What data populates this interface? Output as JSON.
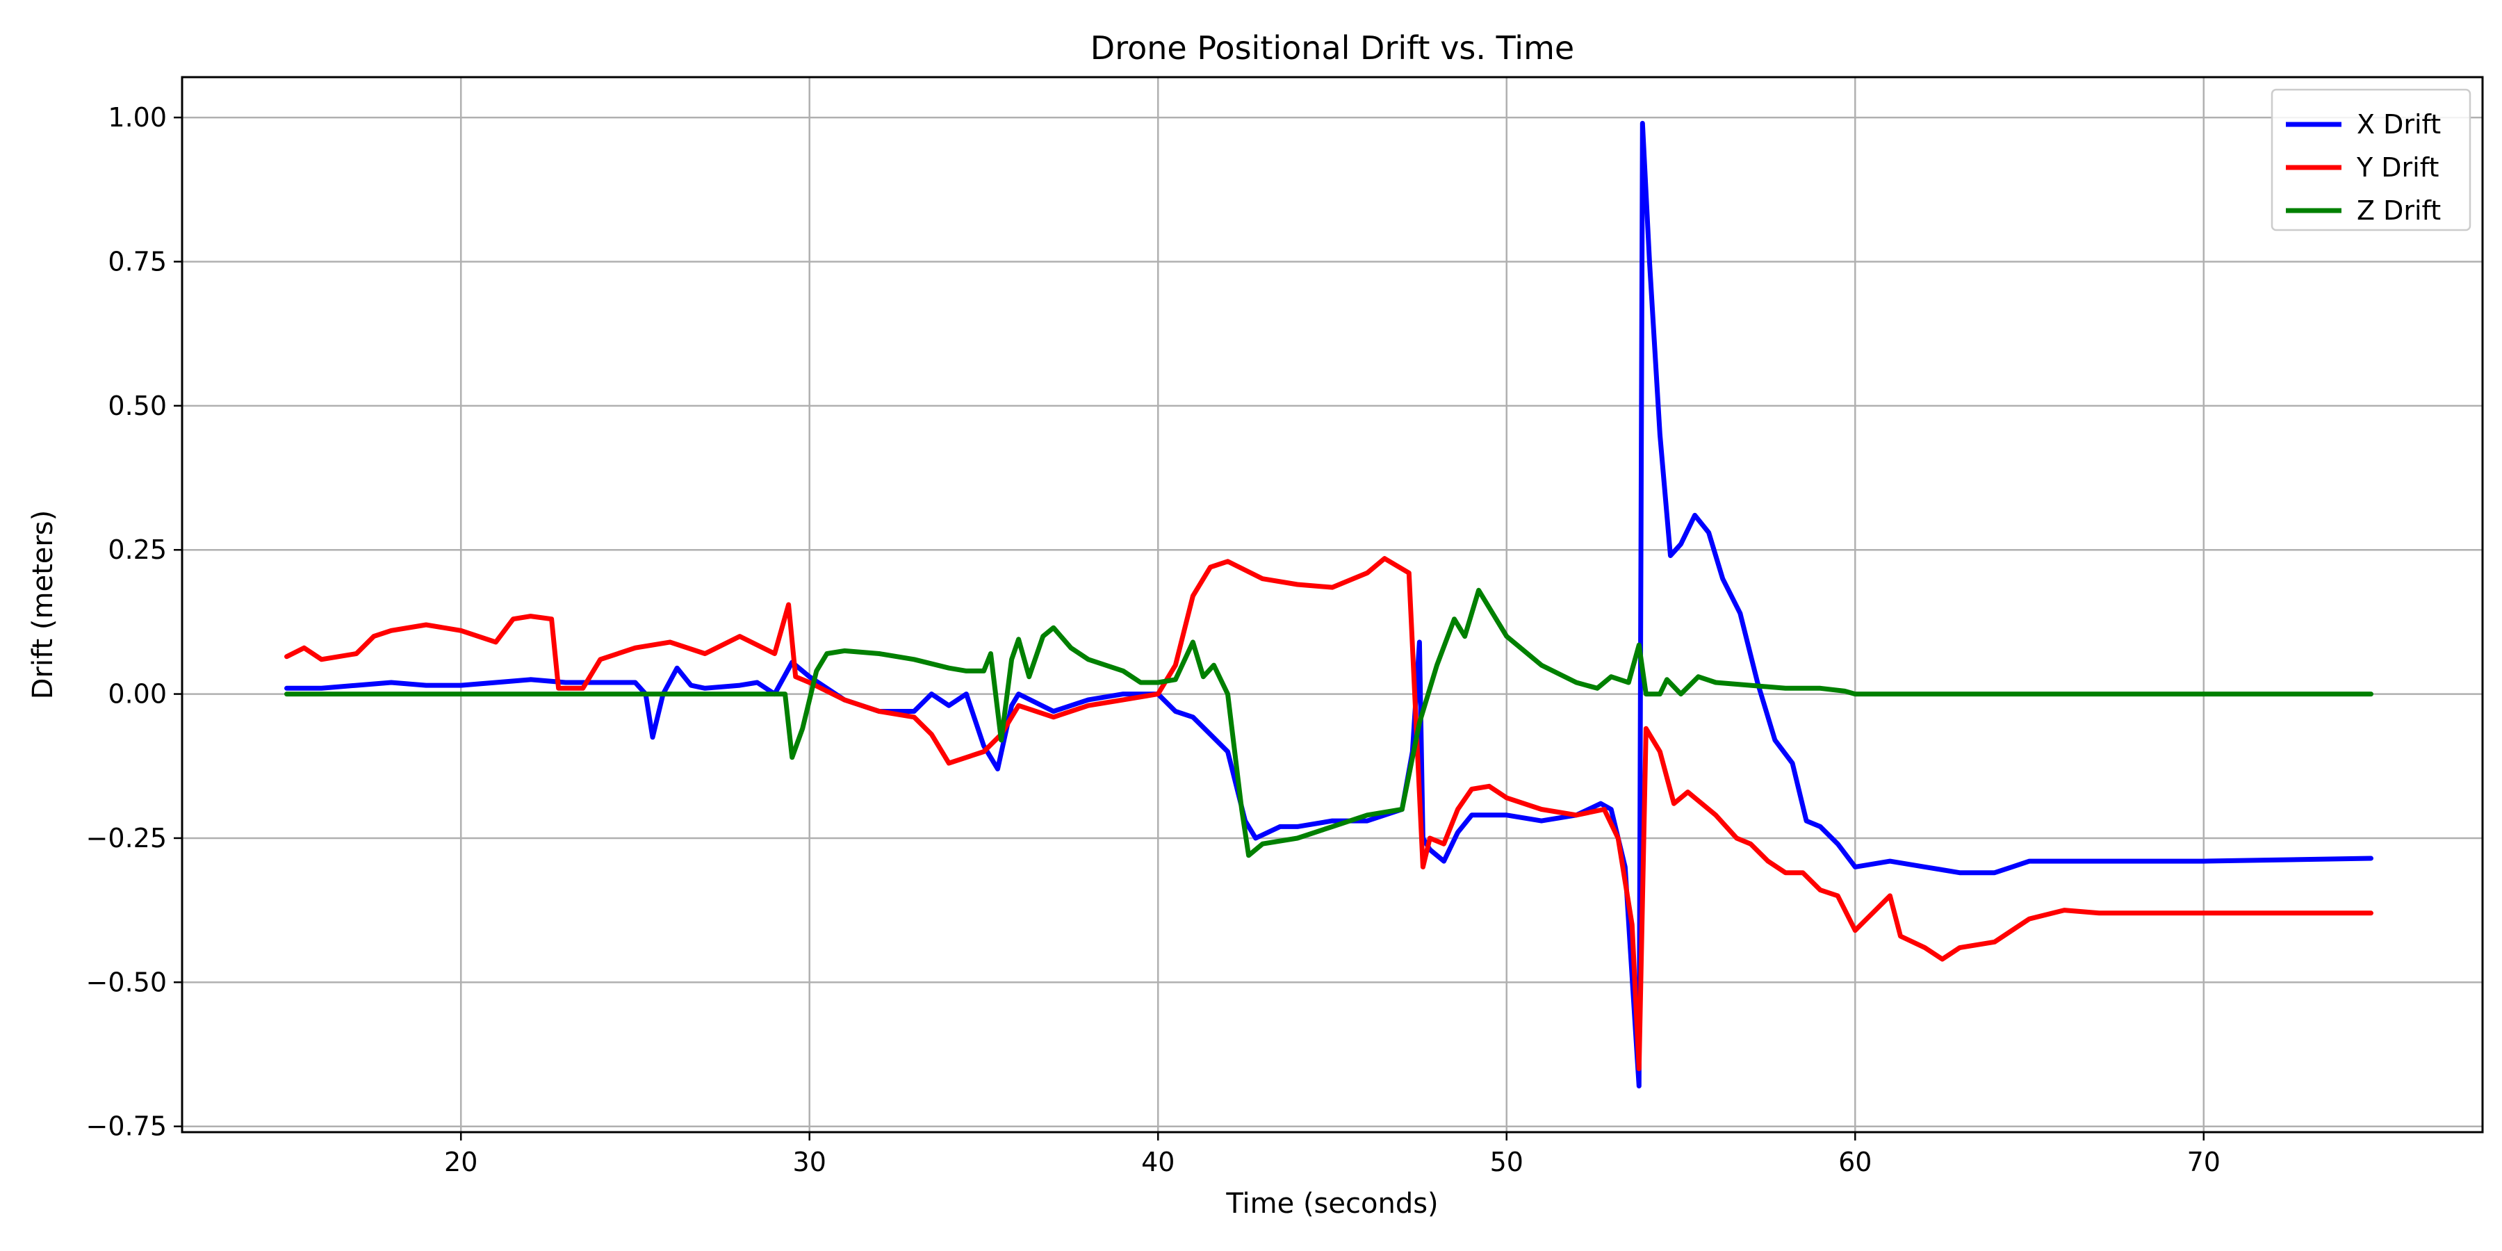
{
  "chart_data": {
    "type": "line",
    "title": "Drone Positional Drift vs. Time",
    "xlabel": "Time (seconds)",
    "ylabel": "Drift (meters)",
    "xlim": [
      12,
      78
    ],
    "ylim": [
      -0.76,
      1.07
    ],
    "xticks": [
      20,
      30,
      40,
      50,
      60,
      70
    ],
    "yticks": [
      1.0,
      0.75,
      0.5,
      0.25,
      0.0,
      -0.25,
      -0.5,
      -0.75
    ],
    "xtick_labels": [
      "20",
      "30",
      "40",
      "50",
      "60",
      "70"
    ],
    "ytick_labels": [
      "1.00",
      "0.75",
      "0.50",
      "0.25",
      "0.00",
      "−0.25",
      "−0.50",
      "−0.75"
    ],
    "grid": true,
    "legend_position": "top-right",
    "series": [
      {
        "name": "X Drift",
        "color": "#0000ff",
        "points": [
          [
            15,
            0.01
          ],
          [
            16,
            0.01
          ],
          [
            17,
            0.015
          ],
          [
            18,
            0.02
          ],
          [
            19,
            0.015
          ],
          [
            20,
            0.015
          ],
          [
            21,
            0.02
          ],
          [
            22,
            0.025
          ],
          [
            23,
            0.02
          ],
          [
            24,
            0.02
          ],
          [
            25,
            0.02
          ],
          [
            25.3,
            0.0
          ],
          [
            25.5,
            -0.075
          ],
          [
            25.8,
            0.0
          ],
          [
            26.2,
            0.045
          ],
          [
            26.6,
            0.015
          ],
          [
            27,
            0.01
          ],
          [
            28,
            0.015
          ],
          [
            28.5,
            0.02
          ],
          [
            29,
            0.0
          ],
          [
            29.5,
            0.055
          ],
          [
            30,
            0.03
          ],
          [
            31,
            -0.01
          ],
          [
            32,
            -0.03
          ],
          [
            33,
            -0.03
          ],
          [
            33.5,
            0.0
          ],
          [
            34,
            -0.02
          ],
          [
            34.5,
            0.0
          ],
          [
            35,
            -0.09
          ],
          [
            35.4,
            -0.13
          ],
          [
            35.8,
            -0.02
          ],
          [
            36,
            0.0
          ],
          [
            37,
            -0.03
          ],
          [
            38,
            -0.01
          ],
          [
            39,
            0.0
          ],
          [
            40,
            0.0
          ],
          [
            40.5,
            -0.03
          ],
          [
            41,
            -0.04
          ],
          [
            41.5,
            -0.07
          ],
          [
            42,
            -0.1
          ],
          [
            42.5,
            -0.22
          ],
          [
            42.8,
            -0.25
          ],
          [
            43.5,
            -0.23
          ],
          [
            44,
            -0.23
          ],
          [
            45,
            -0.22
          ],
          [
            46,
            -0.22
          ],
          [
            47,
            -0.2
          ],
          [
            47.3,
            -0.1
          ],
          [
            47.5,
            0.09
          ],
          [
            47.6,
            -0.25
          ],
          [
            47.8,
            -0.27
          ],
          [
            48.2,
            -0.29
          ],
          [
            48.6,
            -0.24
          ],
          [
            49,
            -0.21
          ],
          [
            50,
            -0.21
          ],
          [
            51,
            -0.22
          ],
          [
            52,
            -0.21
          ],
          [
            52.7,
            -0.19
          ],
          [
            53.0,
            -0.2
          ],
          [
            53.4,
            -0.3
          ],
          [
            53.8,
            -0.68
          ],
          [
            53.9,
            0.99
          ],
          [
            54.1,
            0.75
          ],
          [
            54.4,
            0.45
          ],
          [
            54.7,
            0.24
          ],
          [
            55.0,
            0.26
          ],
          [
            55.4,
            0.31
          ],
          [
            55.8,
            0.28
          ],
          [
            56.2,
            0.2
          ],
          [
            56.7,
            0.14
          ],
          [
            57.2,
            0.02
          ],
          [
            57.7,
            -0.08
          ],
          [
            58.2,
            -0.12
          ],
          [
            58.6,
            -0.22
          ],
          [
            59.0,
            -0.23
          ],
          [
            59.5,
            -0.26
          ],
          [
            60,
            -0.3
          ],
          [
            61,
            -0.29
          ],
          [
            62,
            -0.3
          ],
          [
            63,
            -0.31
          ],
          [
            64,
            -0.31
          ],
          [
            64.5,
            -0.3
          ],
          [
            65,
            -0.29
          ],
          [
            70,
            -0.29
          ],
          [
            74.8,
            -0.285
          ]
        ]
      },
      {
        "name": "Y Drift",
        "color": "#ff0000",
        "points": [
          [
            15,
            0.065
          ],
          [
            15.5,
            0.08
          ],
          [
            16,
            0.06
          ],
          [
            17,
            0.07
          ],
          [
            17.5,
            0.1
          ],
          [
            18,
            0.11
          ],
          [
            19,
            0.12
          ],
          [
            20,
            0.11
          ],
          [
            21,
            0.09
          ],
          [
            21.5,
            0.13
          ],
          [
            22,
            0.135
          ],
          [
            22.6,
            0.13
          ],
          [
            22.8,
            0.01
          ],
          [
            23.5,
            0.01
          ],
          [
            24,
            0.06
          ],
          [
            25,
            0.08
          ],
          [
            26,
            0.09
          ],
          [
            27,
            0.07
          ],
          [
            28,
            0.1
          ],
          [
            29,
            0.07
          ],
          [
            29.4,
            0.155
          ],
          [
            29.6,
            0.03
          ],
          [
            30,
            0.02
          ],
          [
            31,
            -0.01
          ],
          [
            32,
            -0.03
          ],
          [
            33,
            -0.04
          ],
          [
            33.5,
            -0.07
          ],
          [
            34,
            -0.12
          ],
          [
            34.5,
            -0.11
          ],
          [
            35,
            -0.1
          ],
          [
            35.5,
            -0.07
          ],
          [
            36,
            -0.02
          ],
          [
            37,
            -0.04
          ],
          [
            38,
            -0.02
          ],
          [
            39,
            -0.01
          ],
          [
            40,
            0.0
          ],
          [
            40.5,
            0.05
          ],
          [
            41,
            0.17
          ],
          [
            41.5,
            0.22
          ],
          [
            42,
            0.23
          ],
          [
            43,
            0.2
          ],
          [
            44,
            0.19
          ],
          [
            45,
            0.185
          ],
          [
            46,
            0.21
          ],
          [
            46.5,
            0.235
          ],
          [
            47.2,
            0.21
          ],
          [
            47.6,
            -0.3
          ],
          [
            47.8,
            -0.25
          ],
          [
            48.2,
            -0.26
          ],
          [
            48.6,
            -0.2
          ],
          [
            49,
            -0.165
          ],
          [
            49.5,
            -0.16
          ],
          [
            50,
            -0.18
          ],
          [
            51,
            -0.2
          ],
          [
            52,
            -0.21
          ],
          [
            52.8,
            -0.2
          ],
          [
            53.2,
            -0.25
          ],
          [
            53.6,
            -0.4
          ],
          [
            53.8,
            -0.65
          ],
          [
            54.0,
            -0.06
          ],
          [
            54.4,
            -0.1
          ],
          [
            54.8,
            -0.19
          ],
          [
            55.2,
            -0.17
          ],
          [
            55.6,
            -0.19
          ],
          [
            56,
            -0.21
          ],
          [
            56.6,
            -0.25
          ],
          [
            57,
            -0.26
          ],
          [
            57.5,
            -0.29
          ],
          [
            58,
            -0.31
          ],
          [
            58.5,
            -0.31
          ],
          [
            59,
            -0.34
          ],
          [
            59.5,
            -0.35
          ],
          [
            60,
            -0.41
          ],
          [
            60.5,
            -0.38
          ],
          [
            61,
            -0.35
          ],
          [
            61.3,
            -0.42
          ],
          [
            62,
            -0.44
          ],
          [
            62.5,
            -0.46
          ],
          [
            63,
            -0.44
          ],
          [
            64,
            -0.43
          ],
          [
            65,
            -0.39
          ],
          [
            66,
            -0.375
          ],
          [
            67,
            -0.38
          ],
          [
            70,
            -0.38
          ],
          [
            74.8,
            -0.38
          ]
        ]
      },
      {
        "name": "Z Drift",
        "color": "#008000",
        "points": [
          [
            15,
            0.0
          ],
          [
            29.3,
            0.0
          ],
          [
            29.5,
            -0.11
          ],
          [
            29.8,
            -0.06
          ],
          [
            30.2,
            0.04
          ],
          [
            30.5,
            0.07
          ],
          [
            31,
            0.075
          ],
          [
            32,
            0.07
          ],
          [
            33,
            0.06
          ],
          [
            34,
            0.045
          ],
          [
            34.5,
            0.04
          ],
          [
            35,
            0.04
          ],
          [
            35.2,
            0.07
          ],
          [
            35.5,
            -0.08
          ],
          [
            35.8,
            0.06
          ],
          [
            36.0,
            0.095
          ],
          [
            36.3,
            0.03
          ],
          [
            36.7,
            0.1
          ],
          [
            37,
            0.115
          ],
          [
            37.5,
            0.08
          ],
          [
            38,
            0.06
          ],
          [
            39,
            0.04
          ],
          [
            39.5,
            0.02
          ],
          [
            40,
            0.02
          ],
          [
            40.5,
            0.025
          ],
          [
            41,
            0.09
          ],
          [
            41.3,
            0.03
          ],
          [
            41.6,
            0.05
          ],
          [
            42,
            0.0
          ],
          [
            42.4,
            -0.2
          ],
          [
            42.6,
            -0.28
          ],
          [
            43,
            -0.26
          ],
          [
            44,
            -0.25
          ],
          [
            45,
            -0.23
          ],
          [
            46,
            -0.21
          ],
          [
            47,
            -0.2
          ],
          [
            47.5,
            -0.05
          ],
          [
            48,
            0.05
          ],
          [
            48.5,
            0.13
          ],
          [
            48.8,
            0.1
          ],
          [
            49.2,
            0.18
          ],
          [
            49.6,
            0.14
          ],
          [
            50,
            0.1
          ],
          [
            51,
            0.05
          ],
          [
            52,
            0.02
          ],
          [
            52.6,
            0.01
          ],
          [
            53,
            0.03
          ],
          [
            53.5,
            0.02
          ],
          [
            53.8,
            0.085
          ],
          [
            54.0,
            0.0
          ],
          [
            54.4,
            0.0
          ],
          [
            54.6,
            0.025
          ],
          [
            55,
            0.0
          ],
          [
            55.5,
            0.03
          ],
          [
            56,
            0.02
          ],
          [
            57,
            0.015
          ],
          [
            58,
            0.01
          ],
          [
            59,
            0.01
          ],
          [
            59.7,
            0.005
          ],
          [
            60,
            0.0
          ],
          [
            74.8,
            0.0
          ]
        ]
      }
    ]
  }
}
